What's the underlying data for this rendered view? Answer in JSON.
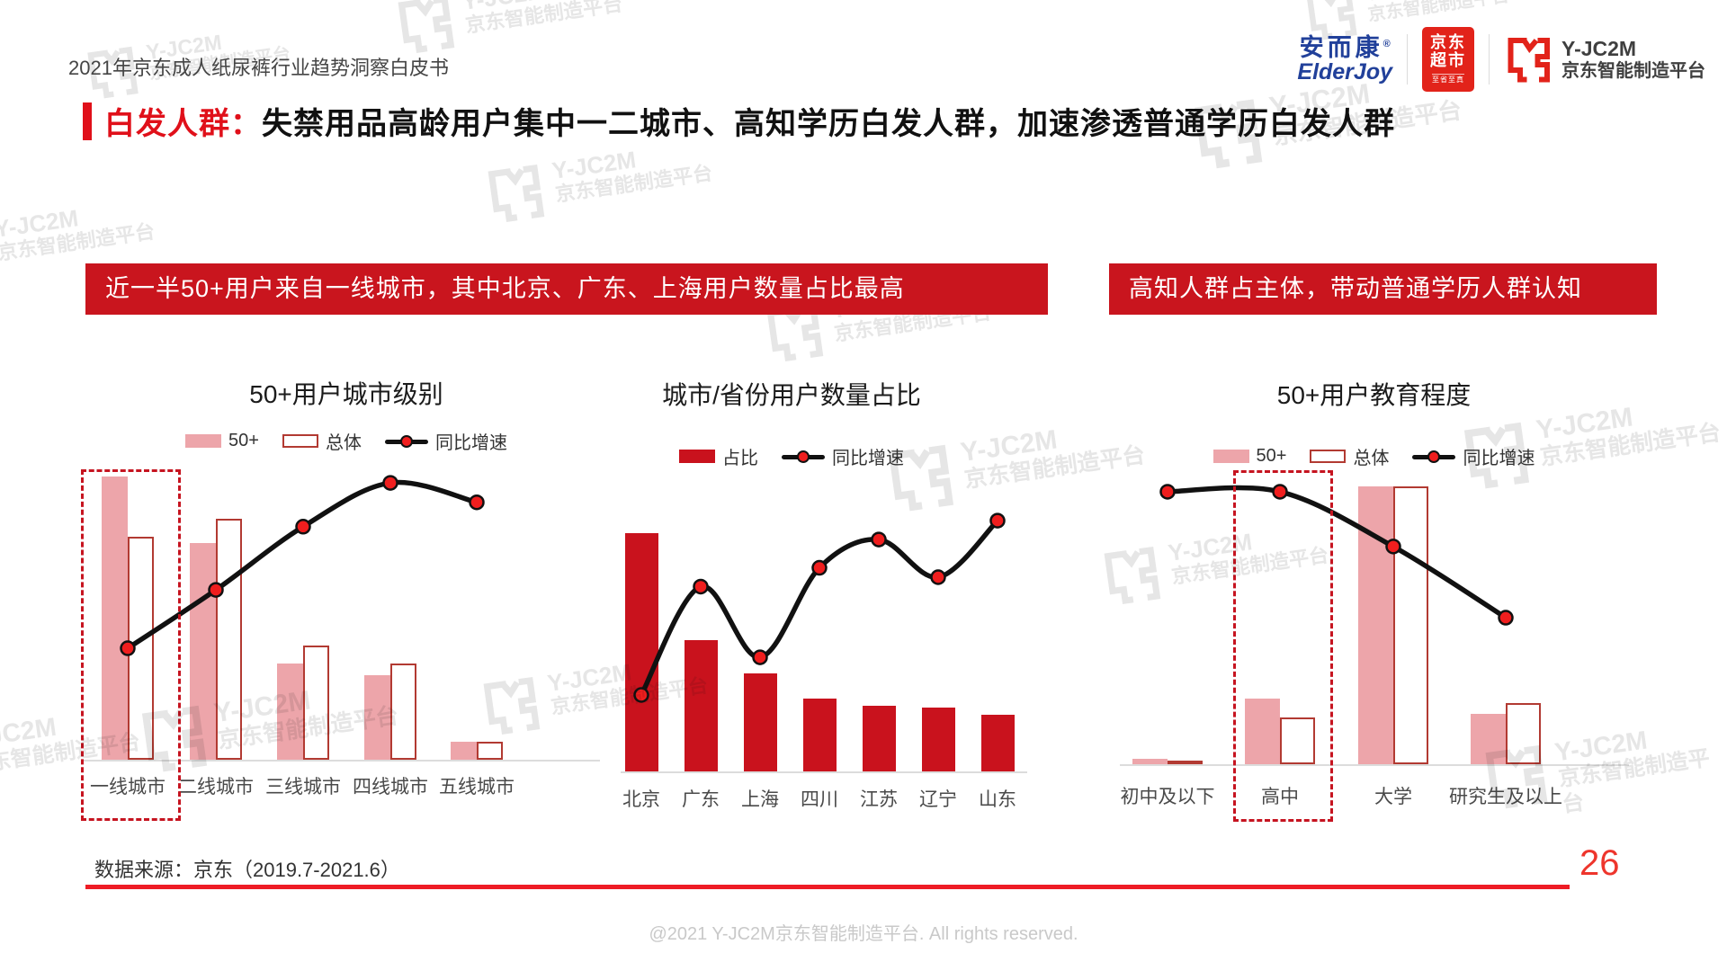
{
  "page": {
    "header_title": "2021年京东成人纸尿裤行业趋势洞察白皮书",
    "title_highlight": "白发人群：",
    "title_rest": "失禁用品高龄用户集中一二城市、高知学历白发人群，加速渗透普通学历白发人群",
    "data_source": "数据来源：京东（2019.7-2021.6）",
    "page_number": "26",
    "copyright": "@2021 Y-JC2M京东智能制造平台. All rights reserved."
  },
  "logos": {
    "elderjoy_cn": "安而康",
    "elderjoy_reg": "®",
    "elderjoy_en": "ElderJoy",
    "jd_line1": "京东",
    "jd_line2": "超市",
    "jd_line3": "至省至真",
    "yjc2m_name": "Y-JC2M",
    "yjc2m_sub": "京东智能制造平台"
  },
  "watermark": {
    "line1": "Y-JC2M",
    "line2": "京东智能制造平台"
  },
  "banners": {
    "left": "近一半50+用户来自一线城市，其中北京、广东、上海用户数量占比最高",
    "right": "高知人群占主体，带动普通学历人群认知"
  },
  "colors": {
    "accent_red": "#e0101a",
    "banner_red": "#c9151e",
    "bar_red": "#c9121d",
    "bar_pink": "#eda5aa",
    "bar_outline_border": "#b23a32",
    "line_black": "#111111",
    "marker_red": "#f01e1e",
    "dashed_red": "#c61420",
    "footer_line_red": "#ee1c25",
    "elderjoy_blue": "#21409a",
    "jd_box_red": "#e2231a"
  },
  "chart_data": [
    {
      "id": "city-tier",
      "type": "bar",
      "title": "50+用户城市级别",
      "categories": [
        "一线城市",
        "二线城市",
        "三线城市",
        "四线城市",
        "五线城市"
      ],
      "series": [
        {
          "name": "50+",
          "type": "bar",
          "style": "pink-solid",
          "values": [
            47,
            36,
            16,
            14,
            3
          ]
        },
        {
          "name": "总体",
          "type": "bar",
          "style": "red-outline",
          "values": [
            37,
            40,
            19,
            16,
            3
          ]
        },
        {
          "name": "同比增速",
          "type": "line",
          "values": [
            8,
            20,
            33,
            42,
            38
          ]
        }
      ],
      "unit": "%",
      "legend_position": "top",
      "grid": false,
      "highlight_box_category": "一线城市"
    },
    {
      "id": "city-province",
      "type": "bar",
      "title": "城市/省份用户数量占比",
      "categories": [
        "北京",
        "广东",
        "上海",
        "四川",
        "江苏",
        "辽宁",
        "山东"
      ],
      "series": [
        {
          "name": "占比",
          "type": "bar",
          "style": "red-solid",
          "values": [
            16,
            8.8,
            6.6,
            4.9,
            4.4,
            4.3,
            3.8
          ]
        },
        {
          "name": "同比增速",
          "type": "line",
          "values": [
            5,
            28,
            13,
            32,
            38,
            30,
            42
          ]
        }
      ],
      "unit": "%",
      "legend_position": "top",
      "grid": false,
      "highlight_box_category": null
    },
    {
      "id": "education",
      "type": "bar",
      "title": "50+用户教育程度",
      "categories": [
        "初中及以下",
        "高中",
        "大学",
        "研究生及以上"
      ],
      "series": [
        {
          "name": "50+",
          "type": "bar",
          "style": "pink-solid",
          "values": [
            1.4,
            16.5,
            70,
            12.7
          ]
        },
        {
          "name": "总体",
          "type": "bar",
          "style": "red-outline",
          "values": [
            0.8,
            11.8,
            70,
            15.4
          ]
        },
        {
          "name": "同比增速",
          "type": "line",
          "values": [
            45,
            45,
            35,
            22
          ]
        }
      ],
      "unit": "%",
      "legend_position": "top",
      "grid": false,
      "highlight_box_category": "高中"
    }
  ]
}
